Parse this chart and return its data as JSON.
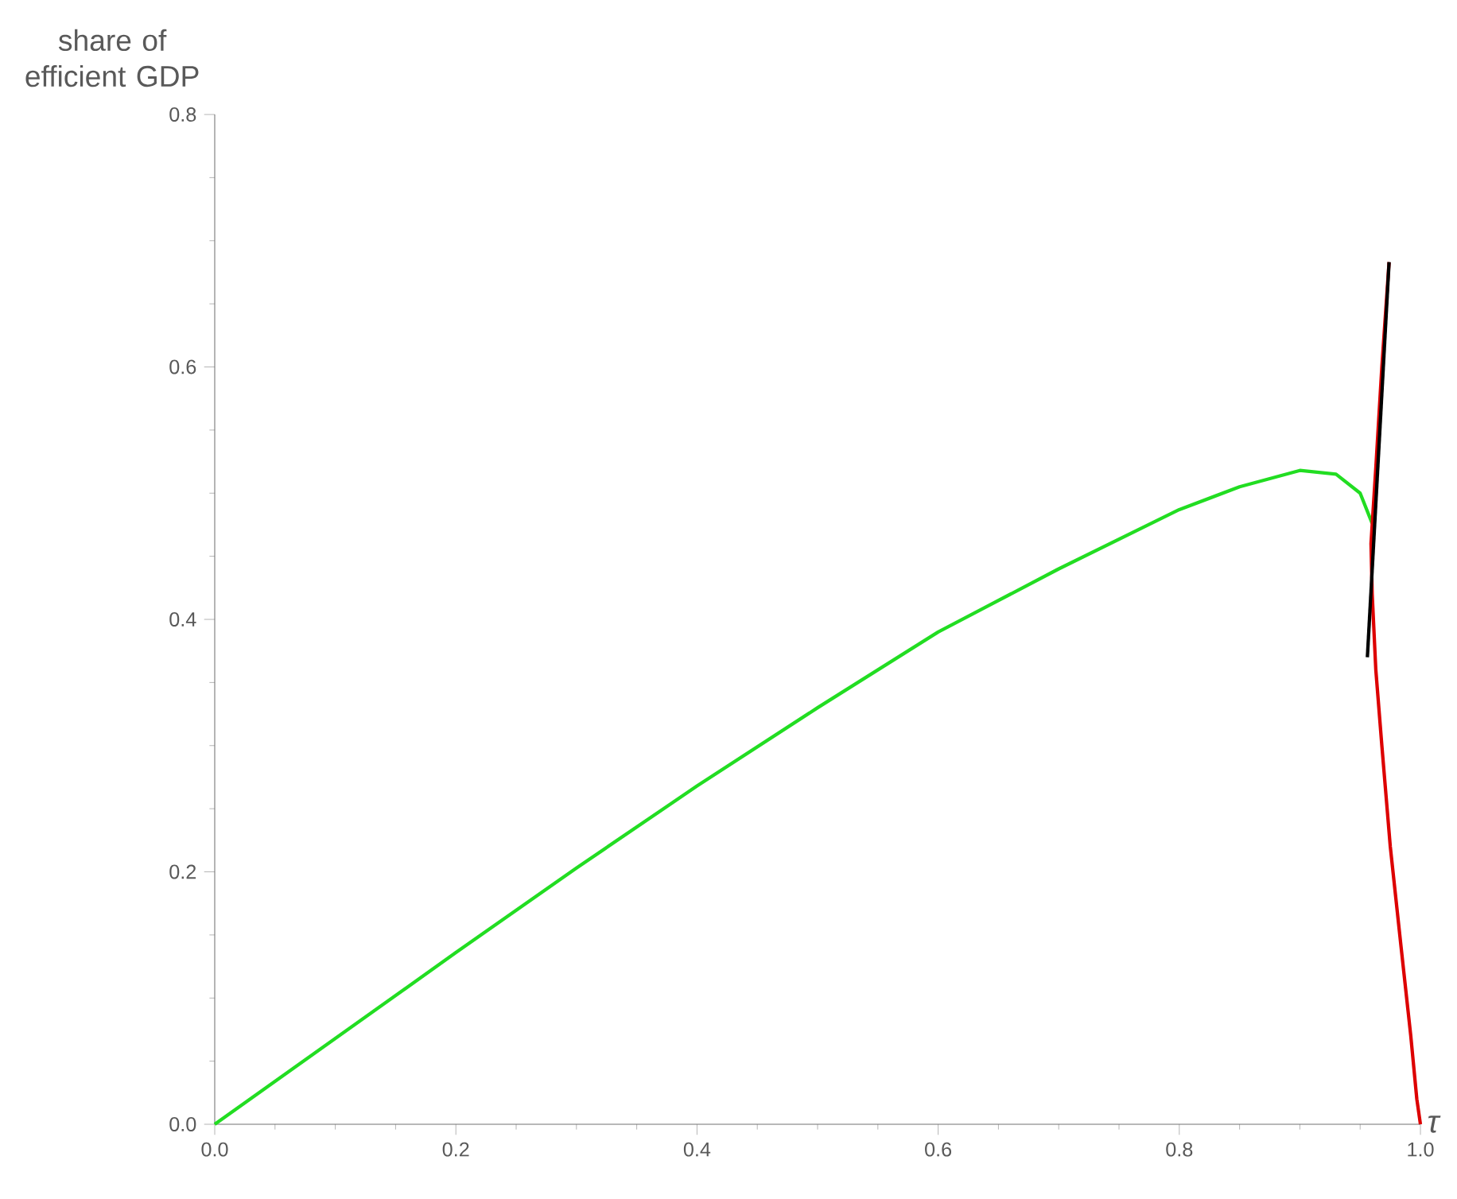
{
  "chart_data": {
    "type": "line",
    "xlabel": "τ",
    "ylabel": "share of efficient GDP",
    "xlim": [
      0,
      1
    ],
    "ylim": [
      0,
      0.8
    ],
    "xticks": [
      {
        "value": 0,
        "label": "0.0"
      },
      0.2,
      0.4,
      0.6,
      0.8,
      {
        "value": 1,
        "label": "1.0"
      }
    ],
    "yticks": [
      {
        "value": 0,
        "label": "0.0"
      },
      0.2,
      0.4,
      0.6,
      0.8
    ],
    "grid": false,
    "marker": "none",
    "line_style": "solid",
    "series": [
      {
        "color": "#22dd22",
        "x": [
          0,
          0.1,
          0.2,
          0.3,
          0.4,
          0.5,
          0.6,
          0.7,
          0.8,
          0.85,
          0.9,
          0.93,
          0.95,
          0.96
        ],
        "values": [
          0,
          0.068,
          0.136,
          0.203,
          0.268,
          0.33,
          0.39,
          0.44,
          0.487,
          0.505,
          0.518,
          0.515,
          0.5,
          0.476
        ]
      },
      {
        "color": "#dd0000",
        "x": [
          0.974,
          0.968,
          0.963,
          0.959,
          0.96,
          0.963,
          0.968,
          0.975,
          0.984,
          0.992,
          0.997,
          1.0
        ],
        "values": [
          0.683,
          0.6,
          0.52,
          0.46,
          0.42,
          0.36,
          0.3,
          0.22,
          0.14,
          0.07,
          0.02,
          0.0
        ]
      },
      {
        "color": "#000000",
        "x": [
          0.956,
          0.974
        ],
        "values": [
          0.37,
          0.683
        ]
      }
    ]
  }
}
